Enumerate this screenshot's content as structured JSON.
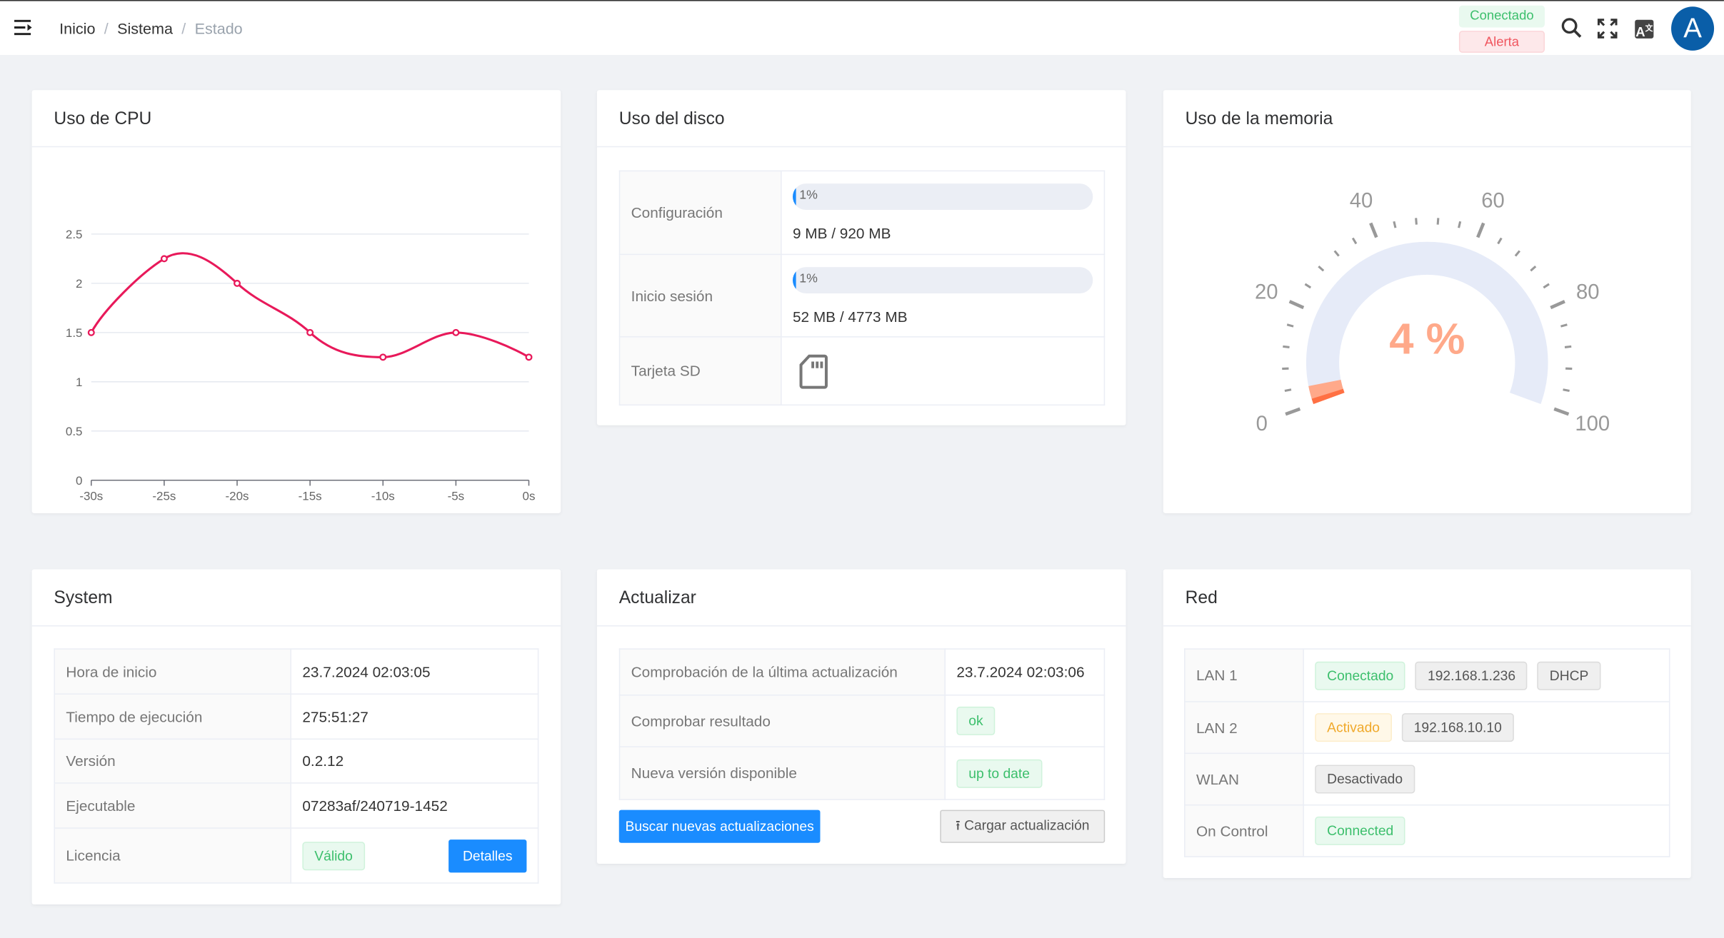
{
  "header": {
    "breadcrumb": [
      "Inicio",
      "Sistema",
      "Estado"
    ],
    "status_connected": "Conectado",
    "status_alert": "Alerta",
    "avatar_letter": "A",
    "icons": [
      "menu-icon",
      "search-icon",
      "fullscreen-icon",
      "translate-icon"
    ]
  },
  "cpu": {
    "title": "Uso de CPU",
    "chart_data": {
      "type": "line",
      "title": "",
      "xlabel": "",
      "ylabel": "",
      "x": [
        "-30s",
        "-25s",
        "-20s",
        "-15s",
        "-10s",
        "-5s",
        "0s"
      ],
      "values": [
        1.5,
        2.25,
        2.0,
        1.5,
        1.25,
        1.5,
        1.25
      ],
      "yticks": [
        "0",
        "0.5",
        "1",
        "1.5",
        "2",
        "2.5"
      ],
      "ylim": [
        0,
        2.5
      ],
      "smooth": true,
      "grid": true,
      "color": "#e8195a"
    }
  },
  "disk": {
    "title": "Uso del disco",
    "rows": [
      {
        "label": "Configuración",
        "percent": 1,
        "percent_label": "1%",
        "usage": "9 MB / 920 MB"
      },
      {
        "label": "Inicio sesión",
        "percent": 1,
        "percent_label": "1%",
        "usage": "52 MB / 4773 MB"
      },
      {
        "label": "Tarjeta SD",
        "icon": "sd-card-icon"
      }
    ]
  },
  "memory": {
    "title": "Uso de la memoria",
    "gauge": {
      "value": 4,
      "min": 0,
      "max": 100,
      "label": "4 %",
      "ticks": [
        "0",
        "20",
        "40",
        "60",
        "80",
        "100"
      ],
      "color": "#ffa98a",
      "track_color": "#e6ebf8"
    }
  },
  "system": {
    "title": "System",
    "rows": [
      {
        "label": "Hora de inicio",
        "value": "23.7.2024 02:03:05"
      },
      {
        "label": "Tiempo de ejecución",
        "value": "275:51:27"
      },
      {
        "label": "Versión",
        "value": "0.2.12"
      },
      {
        "label": "Ejecutable",
        "value": "07283af/240719-1452"
      },
      {
        "label": "Licencia",
        "badge": "Válido",
        "button": "Detalles"
      }
    ]
  },
  "update": {
    "title": "Actualizar",
    "rows": [
      {
        "label": "Comprobación de la última actualización",
        "value": "23.7.2024 02:03:06"
      },
      {
        "label": "Comprobar resultado",
        "badge": "ok"
      },
      {
        "label": "Nueva versión disponible",
        "badge": "up to date"
      }
    ],
    "check_button": "Buscar nuevas actualizaciones",
    "upload_button": "Cargar actualización"
  },
  "network": {
    "title": "Red",
    "rows": [
      {
        "label": "LAN 1",
        "badges": [
          "Conectado",
          "192.168.1.236",
          "DHCP"
        ]
      },
      {
        "label": "LAN 2",
        "badges": [
          "Activado",
          "192.168.10.10"
        ]
      },
      {
        "label": "WLAN",
        "badges": [
          "Desactivado"
        ]
      },
      {
        "label": "On Control",
        "badges": [
          "Connected"
        ]
      }
    ]
  }
}
